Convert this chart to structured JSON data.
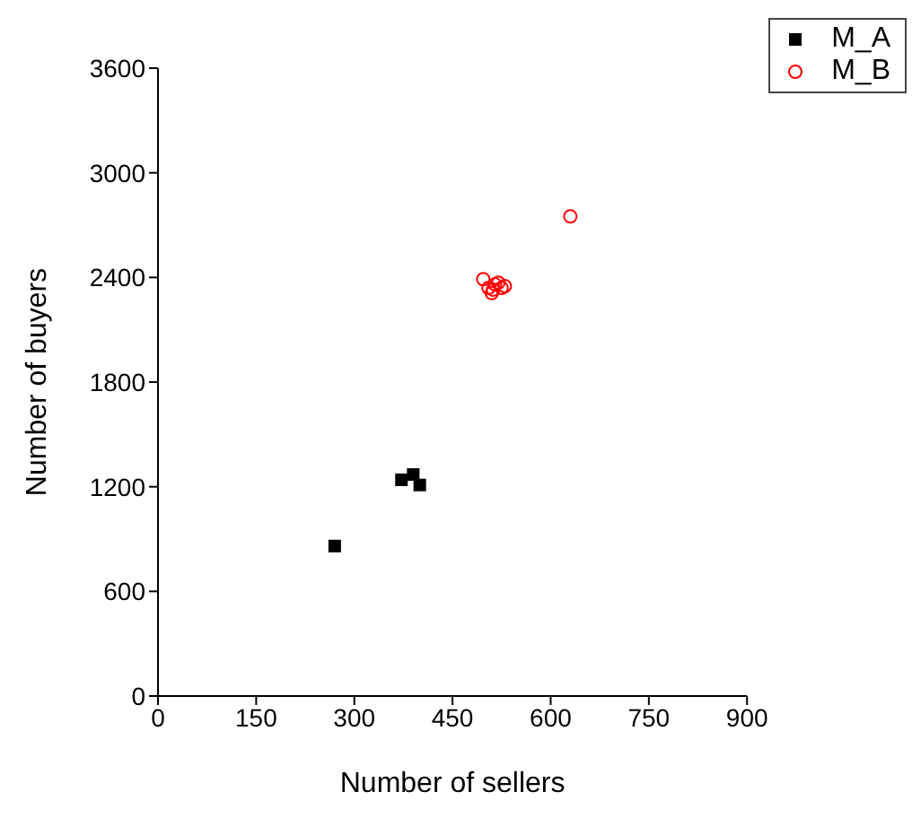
{
  "chart_data": {
    "type": "scatter",
    "xlabel": "Number of sellers",
    "ylabel": "Number of buyers",
    "xlim": [
      0,
      900
    ],
    "xticks": [
      0,
      150,
      300,
      450,
      600,
      750,
      900
    ],
    "ylim": [
      0,
      3600
    ],
    "yticks": [
      0,
      600,
      1200,
      1800,
      2400,
      3000,
      3600
    ],
    "grid": false,
    "legend": "top right",
    "series": [
      {
        "name": "M_A",
        "color": "#000000",
        "marker": "square",
        "x": [
          270,
          372,
          390,
          400
        ],
        "values": [
          860,
          1240,
          1270,
          1210
        ]
      },
      {
        "name": "M_B",
        "color": "#ff0000",
        "marker": "circle",
        "x": [
          497,
          505,
          510,
          512,
          515,
          520,
          525,
          530,
          630
        ],
        "values": [
          2390,
          2340,
          2310,
          2330,
          2360,
          2370,
          2340,
          2350,
          2750
        ]
      }
    ]
  }
}
